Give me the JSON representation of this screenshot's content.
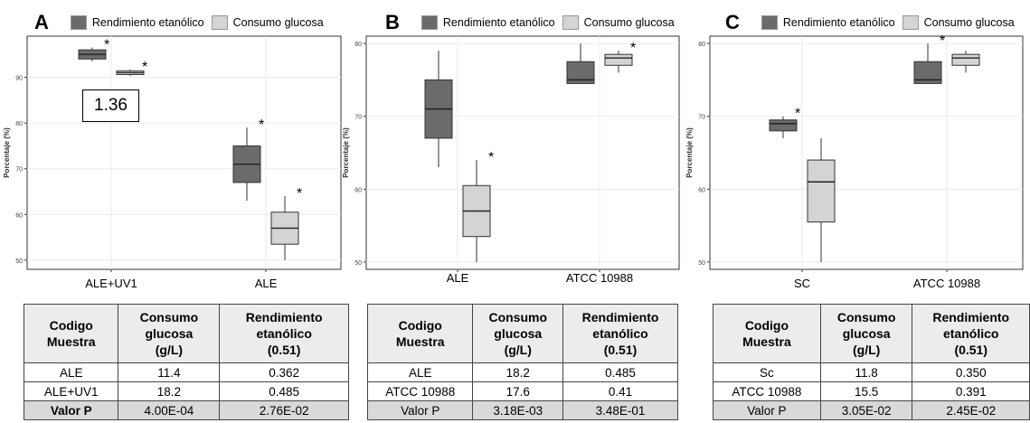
{
  "legend": {
    "series1": "Rendimiento etanólico",
    "series2": "Consumo glucosa",
    "colors": {
      "series1": "#6b6b6b",
      "series2": "#d4d4d4"
    }
  },
  "panels": [
    {
      "letter": "A",
      "annotation": "1.36",
      "table": {
        "headers": [
          "Codigo\nMuestra",
          "Consumo\nglucosa\n(g/L)",
          "Rendimiento\netanólico\n(0.51)"
        ],
        "rows": [
          [
            "ALE",
            "11.4",
            "0.362"
          ],
          [
            "ALE+UV1",
            "18.2",
            "0.485"
          ]
        ],
        "pvalue_row": [
          "Valor P",
          "4.00E-04",
          "2.76E-02"
        ]
      }
    },
    {
      "letter": "B",
      "annotation": "",
      "table": {
        "headers": [
          "Codigo\nMuestra",
          "Consumo\nglucosa\n(g/L)",
          "Rendimiento\netanólico\n(0.51)"
        ],
        "rows": [
          [
            "ALE",
            "18.2",
            "0.485"
          ],
          [
            "ATCC 10988",
            "17.6",
            "0.41"
          ]
        ],
        "pvalue_row": [
          "Valor P",
          "3.18E-03",
          "3.48E-01"
        ]
      }
    },
    {
      "letter": "C",
      "annotation": "",
      "table": {
        "headers": [
          "Codigo\nMuestra",
          "Consumo\nglucosa\n(g/L)",
          "Rendimiento\netanólico\n(0.51)"
        ],
        "rows": [
          [
            "Sc",
            "11.8",
            "0.350"
          ],
          [
            "ATCC 10988",
            "15.5",
            "0.391"
          ]
        ],
        "pvalue_row": [
          "Valor P",
          "3.05E-02",
          "2.45E-02"
        ]
      }
    }
  ],
  "chart_data": [
    {
      "type": "boxplot",
      "ylabel": "Porcentaje (%)",
      "ylim": [
        48,
        99
      ],
      "yticks": [
        50,
        60,
        70,
        80,
        90
      ],
      "grid": true,
      "categories": [
        "ALE+UV1",
        "ALE"
      ],
      "series": [
        {
          "name": "Rendimiento etanólico",
          "boxes": [
            {
              "min": 93.5,
              "q1": 94.0,
              "median": 95.0,
              "q3": 96.0,
              "max": 96.5,
              "star": "*"
            },
            {
              "min": 63,
              "q1": 67,
              "median": 71,
              "q3": 75,
              "max": 79,
              "star": "*"
            }
          ]
        },
        {
          "name": "Consumo glucosa",
          "boxes": [
            {
              "min": 90.3,
              "q1": 90.6,
              "median": 91.0,
              "q3": 91.4,
              "max": 91.7,
              "star": "*"
            },
            {
              "min": 50,
              "q1": 53.5,
              "median": 57,
              "q3": 60.5,
              "max": 64,
              "star": "*"
            }
          ]
        }
      ]
    },
    {
      "type": "boxplot",
      "ylabel": "Porcentaje (%)",
      "ylim": [
        49,
        81
      ],
      "yticks": [
        50,
        60,
        70,
        80
      ],
      "grid": true,
      "categories": [
        "ALE",
        "ATCC 10988"
      ],
      "series": [
        {
          "name": "Rendimiento etanólico",
          "boxes": [
            {
              "min": 63,
              "q1": 67,
              "median": 71,
              "q3": 75,
              "max": 79,
              "star": ""
            },
            {
              "min": 74.5,
              "q1": 74.5,
              "median": 75,
              "q3": 77.5,
              "max": 80,
              "star": ""
            }
          ]
        },
        {
          "name": "Consumo glucosa",
          "boxes": [
            {
              "min": 50,
              "q1": 53.5,
              "median": 57,
              "q3": 60.5,
              "max": 64,
              "star": "*"
            },
            {
              "min": 76,
              "q1": 77,
              "median": 78,
              "q3": 78.5,
              "max": 79,
              "star": "*"
            }
          ]
        }
      ]
    },
    {
      "type": "boxplot",
      "ylabel": "Porcentaje (%)",
      "ylim": [
        49,
        81
      ],
      "yticks": [
        50,
        60,
        70,
        80
      ],
      "grid": true,
      "categories": [
        "SC",
        "ATCC 10988"
      ],
      "series": [
        {
          "name": "Rendimiento etanólico",
          "boxes": [
            {
              "min": 67,
              "q1": 68,
              "median": 69,
              "q3": 69.5,
              "max": 70,
              "star": "*"
            },
            {
              "min": 74.5,
              "q1": 74.5,
              "median": 75,
              "q3": 77.5,
              "max": 80,
              "star": "*"
            }
          ]
        },
        {
          "name": "Consumo glucosa",
          "boxes": [
            {
              "min": 50,
              "q1": 55.5,
              "median": 61,
              "q3": 64,
              "max": 67,
              "star": ""
            },
            {
              "min": 76,
              "q1": 77,
              "median": 78,
              "q3": 78.5,
              "max": 79,
              "star": ""
            }
          ]
        }
      ]
    }
  ]
}
